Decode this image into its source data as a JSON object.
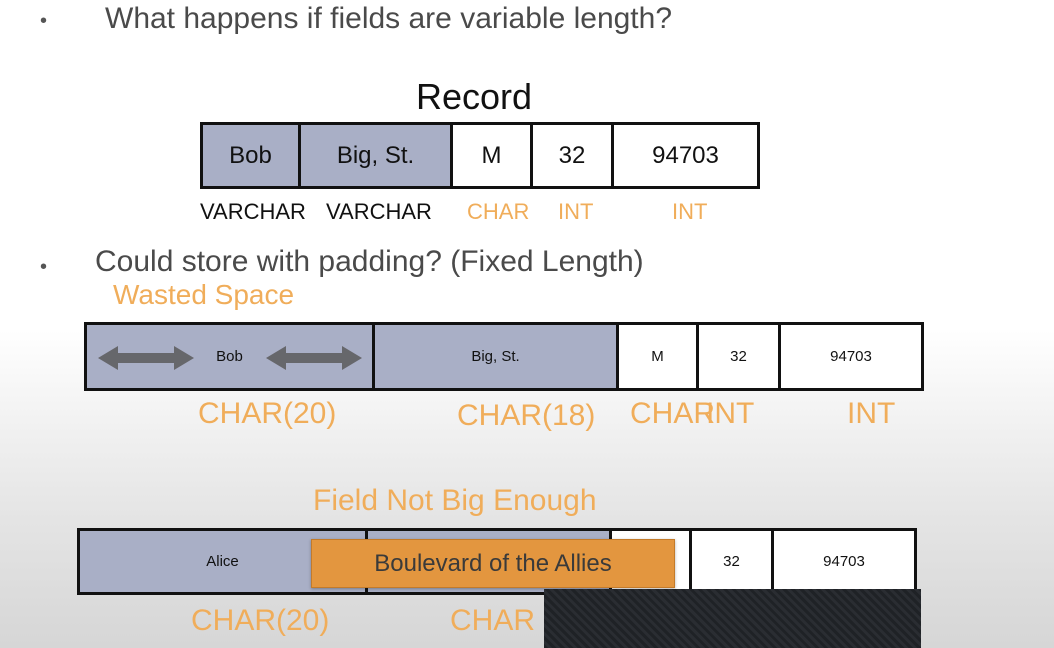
{
  "bullets": {
    "q1": "What happens if fields are variable length?",
    "q2": "Could store with padding? (Fixed Length)"
  },
  "record": {
    "title": "Record",
    "cells": [
      "Bob",
      "Big, St.",
      "M",
      "32",
      "94703"
    ],
    "types": [
      "VARCHAR",
      "VARCHAR",
      "CHAR",
      "INT",
      "INT"
    ]
  },
  "padded": {
    "annotation": "Wasted Space",
    "cells": [
      "Bob",
      "Big, St.",
      "M",
      "32",
      "94703"
    ],
    "types": [
      "CHAR(20)",
      "CHAR(18)",
      "CHAR",
      "INT",
      "INT"
    ]
  },
  "overflow": {
    "annotation": "Field Not Big Enough",
    "cells": [
      "Alice",
      "",
      "",
      "32",
      "94703"
    ],
    "overflow_value": "Boulevard of the Allies",
    "types": [
      "CHAR(20)",
      "CHAR"
    ]
  },
  "colors": {
    "accent": "#f0ad5a",
    "field_fill": "#a9afc6",
    "overflow_fill": "#e3963f"
  }
}
